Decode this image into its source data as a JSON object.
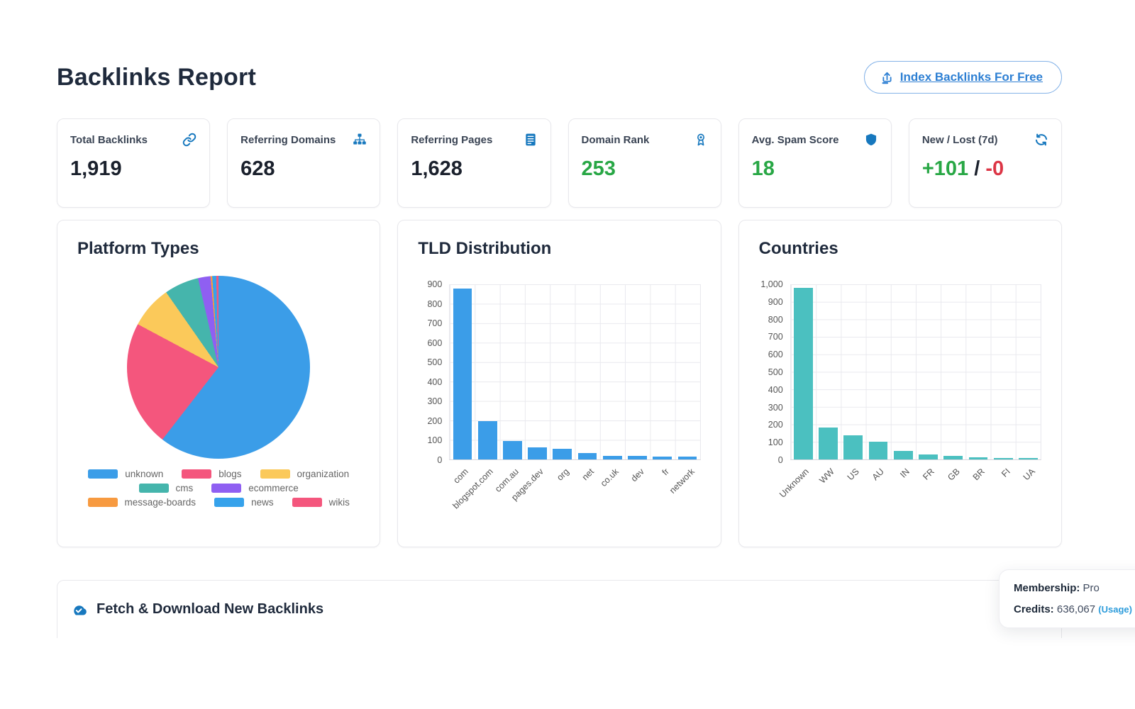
{
  "page": {
    "title": "Backlinks Report"
  },
  "header": {
    "index_button_label": "Index Backlinks For Free"
  },
  "colors": {
    "accent_blue": "#2d7fd3",
    "icon_blue": "#1778be",
    "positive_green": "#28a745",
    "negative_red": "#dc3545",
    "bar_blue": "#3b9de8",
    "bar_teal": "#4bc0c0"
  },
  "stats": [
    {
      "label": "Total Backlinks",
      "value": "1,919",
      "icon": "link-icon"
    },
    {
      "label": "Referring Domains",
      "value": "628",
      "icon": "sitemap-icon"
    },
    {
      "label": "Referring Pages",
      "value": "1,628",
      "icon": "list-icon"
    },
    {
      "label": "Domain Rank",
      "value": "253",
      "icon": "award-icon"
    },
    {
      "label": "Avg. Spam Score",
      "value": "18",
      "icon": "shield-icon"
    },
    {
      "label": "New / Lost (7d)",
      "icon": "sync-icon",
      "value_parts": {
        "new": "+101",
        "separator": " / ",
        "lost": "-0"
      }
    }
  ],
  "chart_data": [
    {
      "type": "pie",
      "title": "Platform Types",
      "labels": [
        "unknown",
        "blogs",
        "organization",
        "cms",
        "ecommerce",
        "message-boards",
        "news",
        "wikis"
      ],
      "values_percent": [
        60.5,
        22.3,
        7.5,
        6.1,
        2.2,
        0.3,
        0.7,
        0.4
      ],
      "colors": [
        "#3b9de8",
        "#f4567d",
        "#fbc95a",
        "#45b5ac",
        "#8f5ff2",
        "#f79a40",
        "#36a2eb",
        "#f4567d"
      ],
      "legend_position": "bottom",
      "note": "values estimated from slice angles"
    },
    {
      "type": "bar",
      "title": "TLD Distribution",
      "categories": [
        "com",
        "blogspot.com",
        "com.au",
        "pages.dev",
        "org",
        "net",
        "co.uk",
        "dev",
        "fr",
        "network"
      ],
      "values": [
        880,
        195,
        95,
        62,
        53,
        33,
        18,
        17,
        16,
        13
      ],
      "color": "#3b9de8",
      "ylim": [
        0,
        900
      ],
      "ytick_step": 100,
      "grid": true,
      "legend": false
    },
    {
      "type": "bar",
      "title": "Countries",
      "categories": [
        "Unknown",
        "WW",
        "US",
        "AU",
        "IN",
        "FR",
        "GB",
        "BR",
        "FI",
        "UA"
      ],
      "values": [
        980,
        182,
        138,
        100,
        47,
        28,
        22,
        13,
        9,
        9
      ],
      "color": "#4bc0c0",
      "ylim": [
        0,
        1000
      ],
      "ytick_step": 100,
      "grid": true,
      "legend": false
    }
  ],
  "fetch_section": {
    "title": "Fetch & Download New Backlinks"
  },
  "membership": {
    "label": "Membership:",
    "value": "Pro",
    "credits_label": "Credits:",
    "credits_value": "636,067",
    "usage_link": "(Usage)"
  }
}
